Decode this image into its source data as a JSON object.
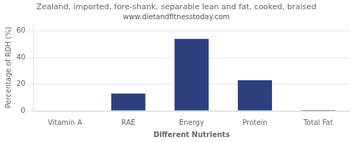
{
  "chart_data": {
    "type": "bar",
    "title": "Zealand, imported, fore-shank, separable lean and fat, cooked, braised",
    "subtitle": "www.dietandfitnesstoday.com",
    "xlabel": "Different Nutrients",
    "ylabel": "Percentage of RDH (%)",
    "categories": [
      "Vitamin A",
      "RAE",
      "Energy",
      "Protein",
      "Total Fat"
    ],
    "values": [
      0,
      13,
      54,
      23,
      0.5
    ],
    "color": "#2e4080",
    "ylim": [
      0,
      65
    ],
    "yticks": [
      0,
      20,
      40,
      60
    ],
    "grid": true
  }
}
